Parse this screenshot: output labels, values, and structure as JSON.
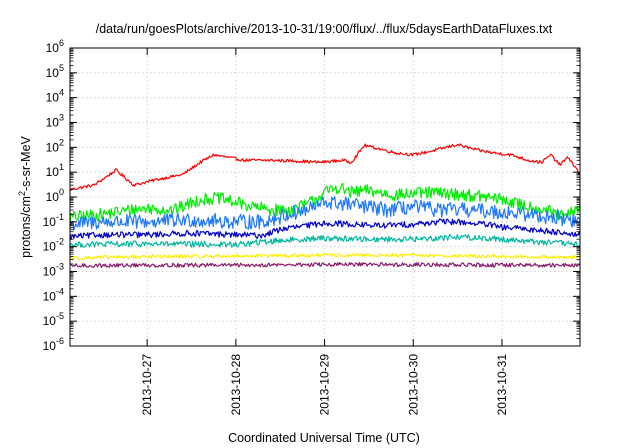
{
  "chart_data": {
    "type": "line",
    "title": "/data/run/goesPlots/archive/2013-10-31/19:00/flux/../flux/5daysEarthDataFluxes.txt",
    "xlabel": "Coordinated Universal Time (UTC)",
    "ylabel": {
      "base": "protons/cm",
      "sup": "2",
      "rest": "-s-sr-MeV"
    },
    "y_scale": "log",
    "ylim_exp": [
      -6,
      6
    ],
    "y_ticks": [
      {
        "base": "10",
        "exp": "-6",
        "e": -6
      },
      {
        "base": "10",
        "exp": "-5",
        "e": -5
      },
      {
        "base": "10",
        "exp": "-4",
        "e": -4
      },
      {
        "base": "10",
        "exp": "-3",
        "e": -3
      },
      {
        "base": "10",
        "exp": "-2",
        "e": -2
      },
      {
        "base": "10",
        "exp": "-1",
        "e": -1
      },
      {
        "base": "10",
        "exp": "0",
        "e": 0
      },
      {
        "base": "10",
        "exp": "1",
        "e": 1
      },
      {
        "base": "10",
        "exp": "2",
        "e": 2
      },
      {
        "base": "10",
        "exp": "3",
        "e": 3
      },
      {
        "base": "10",
        "exp": "4",
        "e": 4
      },
      {
        "base": "10",
        "exp": "5",
        "e": 5
      },
      {
        "base": "10",
        "exp": "6",
        "e": 6
      }
    ],
    "xlim_days": [
      26.13,
      31.88
    ],
    "x_ticks": [
      {
        "label": "2013-10-27",
        "d": 27
      },
      {
        "label": "2013-10-28",
        "d": 28
      },
      {
        "label": "2013-10-29",
        "d": 29
      },
      {
        "label": "2013-10-30",
        "d": 30
      },
      {
        "label": "2013-10-31",
        "d": 31
      }
    ],
    "grid": true,
    "series": [
      {
        "color": "#ff0000",
        "noise": 0.06,
        "x": [
          26.13,
          26.4,
          26.65,
          26.85,
          27.1,
          27.4,
          27.6,
          27.75,
          27.9,
          28.1,
          28.4,
          28.7,
          28.95,
          29.2,
          29.3,
          29.45,
          29.6,
          29.8,
          30.0,
          30.2,
          30.5,
          30.7,
          30.9,
          31.1,
          31.3,
          31.45,
          31.55,
          31.65,
          31.75,
          31.88
        ],
        "y": [
          2,
          3,
          12,
          3,
          5,
          8,
          25,
          50,
          40,
          30,
          30,
          28,
          25,
          30,
          25,
          120,
          90,
          60,
          50,
          70,
          130,
          80,
          60,
          50,
          30,
          25,
          50,
          20,
          40,
          8
        ]
      },
      {
        "color": "#00ee00",
        "noise": 0.25,
        "x": [
          26.13,
          26.5,
          26.8,
          27.0,
          27.3,
          27.6,
          27.8,
          28.0,
          28.2,
          28.4,
          28.6,
          28.8,
          29.0,
          29.15,
          29.3,
          29.5,
          29.8,
          30.2,
          30.5,
          30.8,
          31.0,
          31.2,
          31.5,
          31.7,
          31.88
        ],
        "y": [
          0.15,
          0.2,
          0.3,
          0.35,
          0.3,
          0.8,
          0.9,
          0.6,
          0.4,
          0.3,
          0.3,
          0.5,
          1.5,
          2.5,
          1.5,
          1.8,
          1.2,
          1.5,
          1.3,
          1.0,
          0.8,
          0.5,
          0.3,
          0.15,
          0.4
        ]
      },
      {
        "color": "#1e78ff",
        "noise": 0.3,
        "x": [
          26.13,
          26.5,
          27.0,
          27.5,
          28.0,
          28.3,
          28.6,
          28.8,
          29.0,
          29.3,
          29.7,
          30.0,
          30.3,
          30.6,
          31.0,
          31.3,
          31.6,
          31.88
        ],
        "y": [
          0.08,
          0.1,
          0.1,
          0.12,
          0.1,
          0.1,
          0.2,
          0.3,
          0.6,
          0.5,
          0.3,
          0.4,
          0.3,
          0.3,
          0.25,
          0.2,
          0.15,
          0.1
        ]
      },
      {
        "color": "#0000cc",
        "noise": 0.12,
        "x": [
          26.13,
          26.5,
          27.0,
          27.5,
          28.0,
          28.3,
          28.5,
          28.8,
          29.0,
          29.3,
          29.6,
          30.0,
          30.3,
          30.5,
          30.8,
          31.0,
          31.3,
          31.6,
          31.88
        ],
        "y": [
          0.025,
          0.03,
          0.03,
          0.035,
          0.03,
          0.028,
          0.05,
          0.07,
          0.09,
          0.08,
          0.07,
          0.08,
          0.1,
          0.1,
          0.08,
          0.06,
          0.05,
          0.04,
          0.03
        ]
      },
      {
        "color": "#00b8a0",
        "noise": 0.12,
        "x": [
          26.13,
          27.0,
          28.0,
          28.5,
          29.0,
          29.5,
          30.0,
          30.5,
          31.0,
          31.5,
          31.88
        ],
        "y": [
          0.012,
          0.013,
          0.012,
          0.018,
          0.022,
          0.02,
          0.02,
          0.025,
          0.02,
          0.015,
          0.012
        ]
      },
      {
        "color": "#ffee00",
        "noise": 0.07,
        "x": [
          26.13,
          27.0,
          28.0,
          29.0,
          30.0,
          31.0,
          31.88
        ],
        "y": [
          0.0035,
          0.004,
          0.0042,
          0.0045,
          0.0045,
          0.004,
          0.0038
        ]
      },
      {
        "color": "#8b1a6b",
        "noise": 0.08,
        "x": [
          26.13,
          27.0,
          28.0,
          29.0,
          30.0,
          31.0,
          31.88
        ],
        "y": [
          0.0017,
          0.0018,
          0.0018,
          0.0019,
          0.0019,
          0.0018,
          0.0018
        ]
      }
    ]
  }
}
